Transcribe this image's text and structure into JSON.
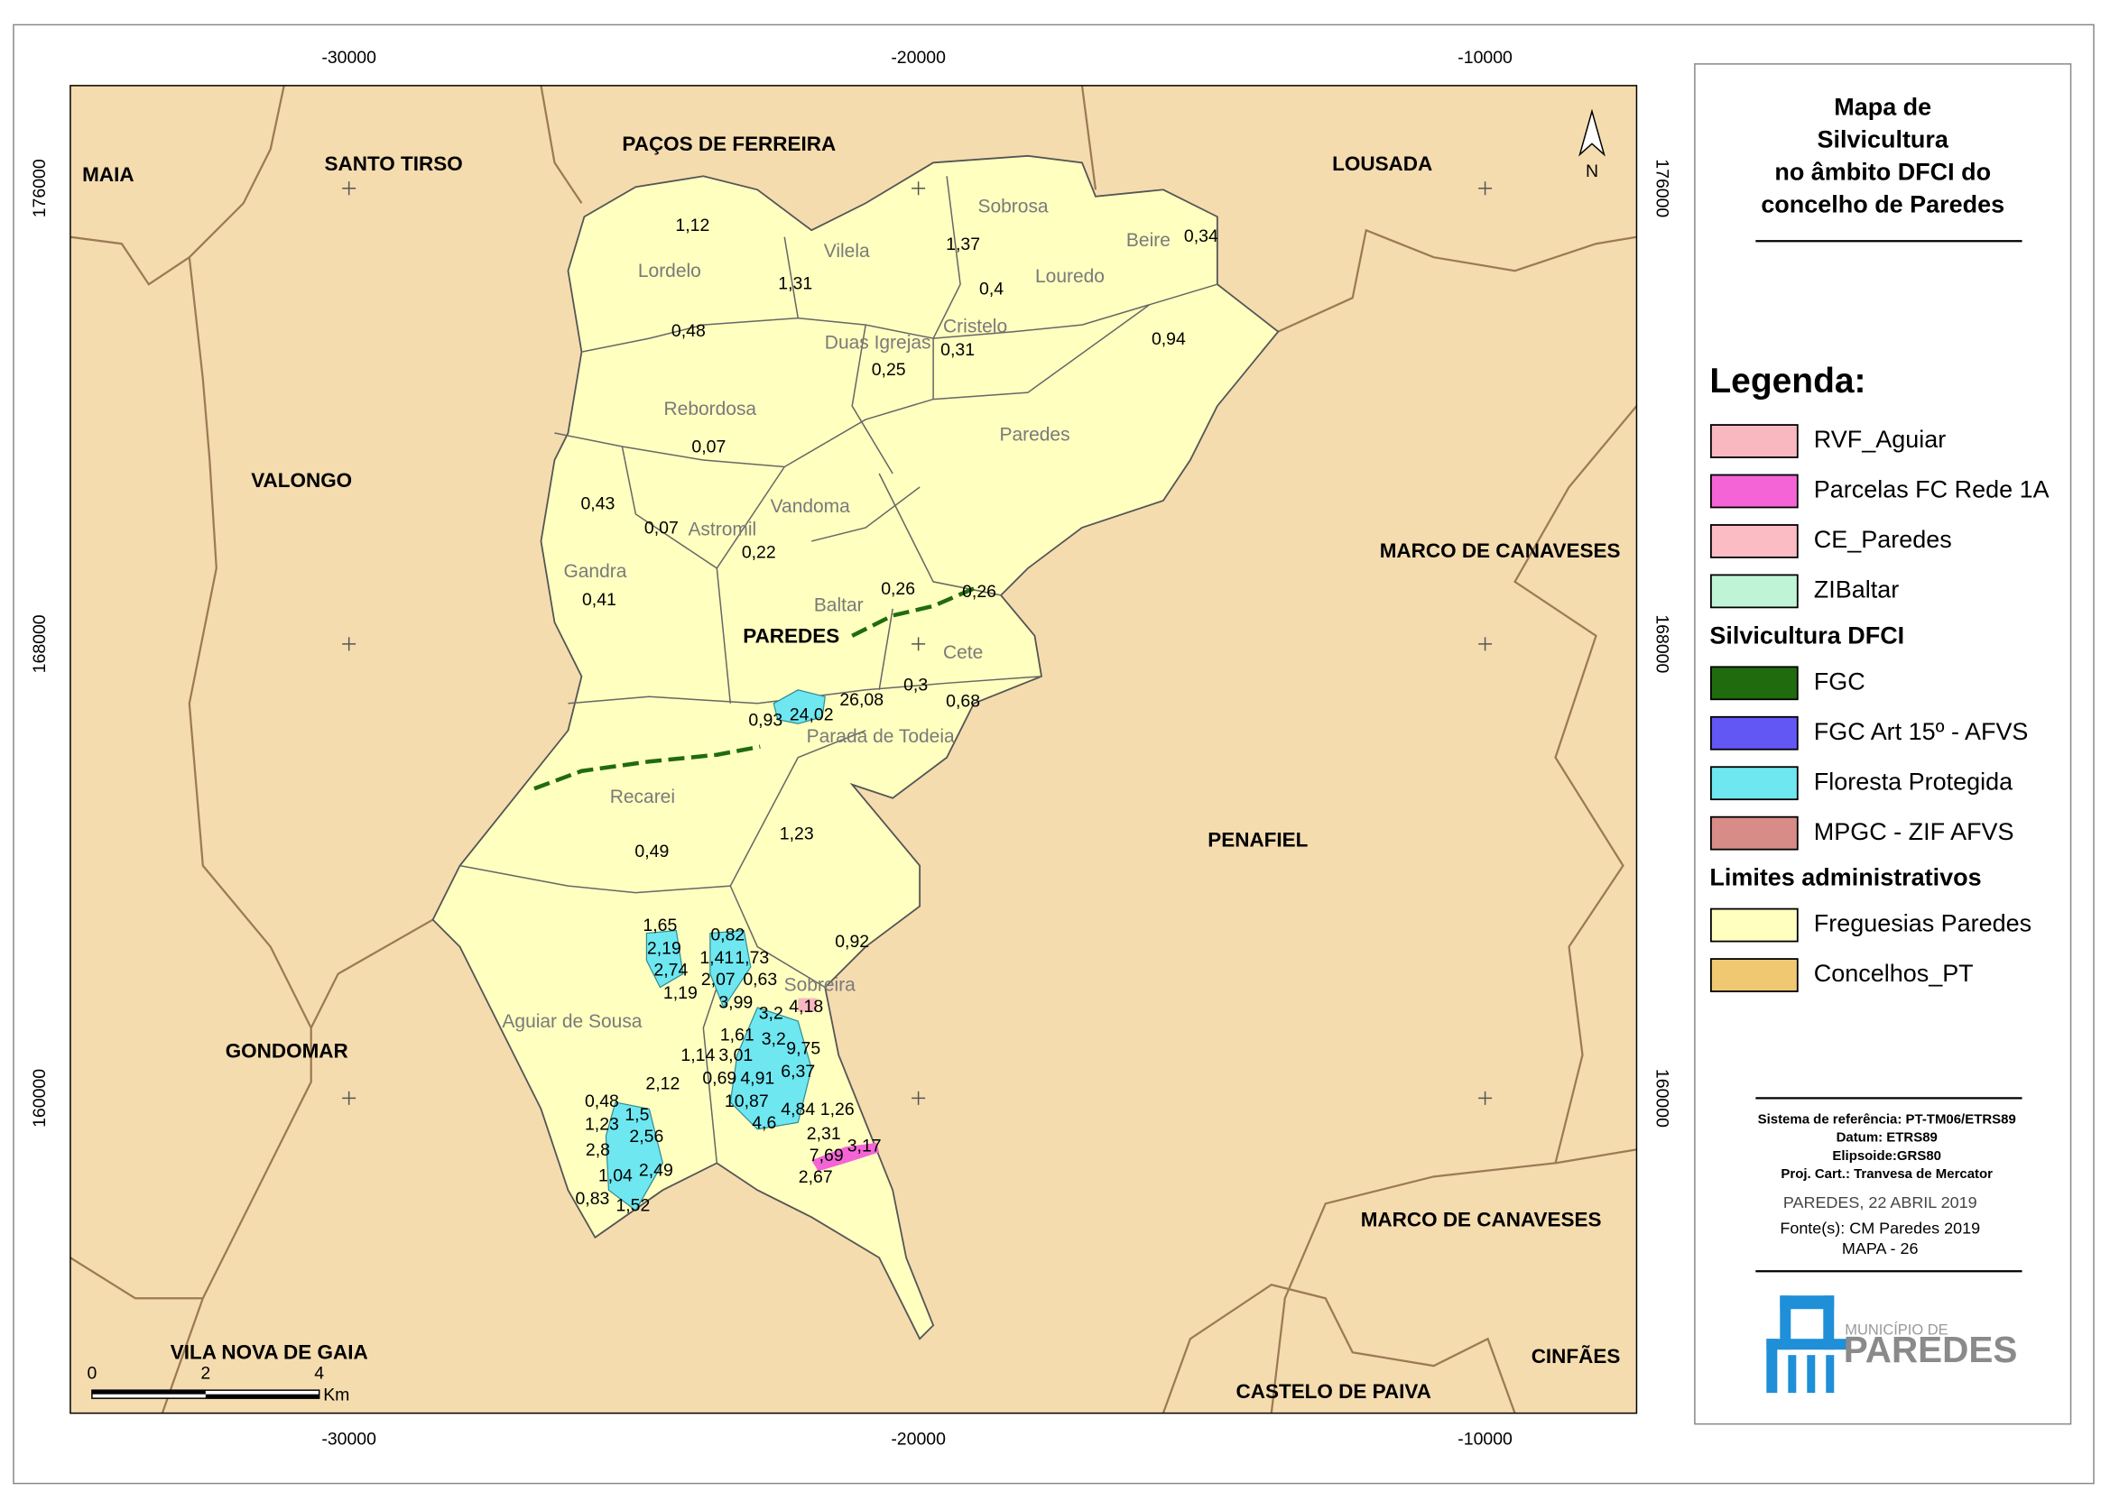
{
  "map": {
    "x_ticks": [
      -30000,
      -20000,
      -10000
    ],
    "y_ticks": [
      176000,
      168000,
      160000
    ],
    "concelhos": [
      "MAIA",
      "SANTO TIRSO",
      "PAÇOS DE FERREIRA",
      "LOUSADA",
      "VALONGO",
      "MARCO DE CANAVESES",
      "PENAFIEL",
      "GONDOMAR",
      "MARCO DE CANAVESES",
      "VILA NOVA DE GAIA",
      "CINFÃES",
      "CASTELO DE PAIVA"
    ],
    "paredes_label": "PAREDES",
    "freguesias": [
      "Sobrosa",
      "Beire",
      "Lordelo",
      "Vilela",
      "Louredo",
      "Cristelo",
      "Duas Igrejas",
      "Rebordosa",
      "Paredes",
      "Vandoma",
      "Astromil",
      "Gandra",
      "Baltar",
      "Cete",
      "Parada de Todeia",
      "Recarei",
      "Sobreira",
      "Aguiar de Sousa"
    ],
    "area_labels": [
      "1,12",
      "1,31",
      "1,37",
      "0,4",
      "0,34",
      "0,48",
      "0,31",
      "0,25",
      "0,94",
      "0,07",
      "0,43",
      "0,07",
      "0,22",
      "0,41",
      "0,26",
      "0,26",
      "0,3",
      "0,68",
      "26,08",
      "24,02",
      "0,93",
      "1,23",
      "0,49",
      "0,92",
      "1,65",
      "0,82",
      "2,19",
      "1,41",
      "1,73",
      "2,74",
      "2,07",
      "0,63",
      "1,19",
      "3,99",
      "4,18",
      "3,2",
      "1,61",
      "3,2",
      "9,75",
      "1,14",
      "3,01",
      "0,69",
      "4,91",
      "6,37",
      "2,12",
      "0,48",
      "10,87",
      "1,5",
      "4,84",
      "1,26",
      "1,23",
      "2,56",
      "2,31",
      "4,6",
      "3,17",
      "2,8",
      "7,69",
      "1,04",
      "2,49",
      "2,67",
      "0,83",
      "1,52"
    ],
    "north": "N",
    "scale_bar": {
      "ticks": [
        0,
        2,
        4
      ],
      "unit": "Km"
    }
  },
  "panel": {
    "title_lines": [
      "Mapa de",
      "Silvicultura",
      "no âmbito DFCI do",
      "concelho de Paredes"
    ],
    "legend": {
      "title": "Legenda:",
      "items": [
        {
          "label": "RVF_Aguiar",
          "color": "#f9b8c0"
        },
        {
          "label": "Parcelas FC Rede 1A",
          "color": "#f564d6"
        },
        {
          "label": "CE_Paredes",
          "color": "#fbbcc4"
        },
        {
          "label": "ZIBaltar",
          "color": "#bff5d6"
        }
      ]
    },
    "sections": [
      {
        "heading": "Silvicultura DFCI",
        "items": [
          {
            "label": "FGC",
            "color": "#216b0f"
          },
          {
            "label": "FGC Art 15º - AFVS",
            "color": "#6256f5"
          },
          {
            "label": "Floresta Protegida",
            "color": "#6ee7f0"
          },
          {
            "label": "MPGC - ZIF AFVS",
            "color": "#d88c88"
          }
        ]
      },
      {
        "heading": "Limites administrativos",
        "items": [
          {
            "label": "Freguesias Paredes",
            "color": "#ffffc0"
          },
          {
            "label": "Concelhos_PT",
            "color": "#f0c872"
          }
        ]
      }
    ],
    "reference": [
      "Sistema de referência: PT-TM06/ETRS89",
      "Datum: ETRS89",
      "Elipsoide:GRS80",
      "Proj. Cart.: Tranvesa de Mercator"
    ],
    "date": "PAREDES, 22 ABRIL 2019",
    "source": "Fonte(s): CM Paredes 2019",
    "map_number": "MAPA - 26",
    "logo": {
      "small": "MUNICÍPIO DE",
      "big": "PAREDES"
    }
  }
}
